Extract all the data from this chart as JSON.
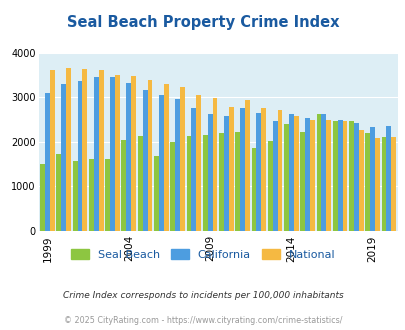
{
  "title": "Seal Beach Property Crime Index",
  "years": [
    1999,
    2000,
    2001,
    2002,
    2003,
    2004,
    2005,
    2006,
    2007,
    2008,
    2009,
    2010,
    2011,
    2012,
    2013,
    2014,
    2015,
    2016,
    2017,
    2018,
    2019,
    2020
  ],
  "seal_beach": [
    1500,
    1730,
    1580,
    1610,
    1620,
    2050,
    2130,
    1680,
    1990,
    2130,
    2160,
    2200,
    2220,
    1870,
    2020,
    2410,
    2220,
    2620,
    2470,
    2480,
    2190,
    2100
  ],
  "california": [
    3100,
    3300,
    3360,
    3450,
    3450,
    3330,
    3160,
    3060,
    2960,
    2750,
    2630,
    2590,
    2760,
    2650,
    2470,
    2620,
    2540,
    2620,
    2490,
    2420,
    2340,
    2350
  ],
  "national": [
    3620,
    3660,
    3630,
    3610,
    3510,
    3470,
    3400,
    3310,
    3230,
    3060,
    2990,
    2790,
    2950,
    2750,
    2710,
    2590,
    2500,
    2490,
    2460,
    2260,
    2090,
    2100
  ],
  "colors": {
    "seal_beach": "#8dc641",
    "california": "#4d9de0",
    "national": "#f5b942"
  },
  "bg_color": "#ddeef5",
  "ylim": [
    0,
    4000
  ],
  "legend_labels": [
    "Seal Beach",
    "California",
    "National"
  ],
  "footnote1": "Crime Index corresponds to incidents per 100,000 inhabitants",
  "footnote2": "© 2025 CityRating.com - https://www.cityrating.com/crime-statistics/",
  "xtick_years": [
    1999,
    2004,
    2009,
    2014,
    2019
  ],
  "title_color": "#1a5aa0",
  "footnote1_color": "#333333",
  "footnote2_color": "#999999"
}
